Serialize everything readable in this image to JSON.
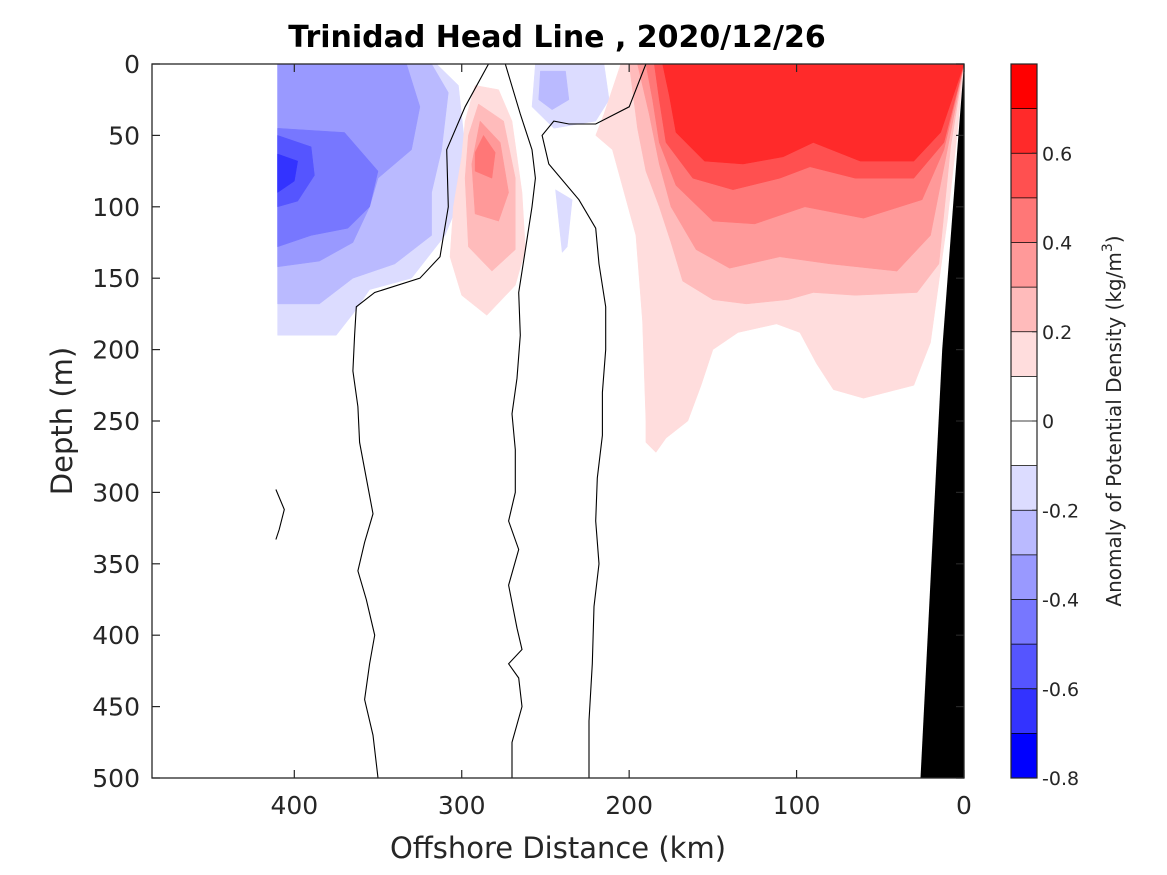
{
  "chart_data": {
    "type": "heatmap",
    "title": "Trinidad Head Line , 2020/12/26",
    "xlabel": "Offshore Distance (km)",
    "ylabel": "Depth (m)",
    "xlim": [
      485,
      0
    ],
    "ylim": [
      0,
      500
    ],
    "x_reversed": true,
    "y_reversed": true,
    "x_ticks": [
      400,
      300,
      200,
      100,
      0
    ],
    "x_tick_labels": [
      "400",
      "300",
      "200",
      "100",
      "0"
    ],
    "y_ticks": [
      0,
      50,
      100,
      150,
      200,
      250,
      300,
      350,
      400,
      450,
      500
    ],
    "y_tick_labels": [
      "0",
      "50",
      "100",
      "150",
      "200",
      "250",
      "300",
      "350",
      "400",
      "450",
      "500"
    ],
    "colorbar": {
      "label": "Anomaly of Potential Density (kg/m³)",
      "label_text": "Anomaly of Potential Density (kg/m",
      "label_sup": "3",
      "label_close": ")",
      "range": [
        -0.8,
        0.8
      ],
      "ticks": [
        0.6,
        0.4,
        0.2,
        0,
        -0.2,
        -0.4,
        -0.6,
        -0.8
      ],
      "tick_labels": [
        "0.6",
        "0.4",
        "0.2",
        "0",
        "-0.2",
        "-0.4",
        "-0.6",
        "-0.8"
      ],
      "levels": [
        {
          "lo": 0.7,
          "hi": 0.8,
          "color": "#ff0000"
        },
        {
          "lo": 0.6,
          "hi": 0.7,
          "color": "#ff2a2a"
        },
        {
          "lo": 0.5,
          "hi": 0.6,
          "color": "#ff5050"
        },
        {
          "lo": 0.4,
          "hi": 0.5,
          "color": "#ff7777"
        },
        {
          "lo": 0.3,
          "hi": 0.4,
          "color": "#ff9999"
        },
        {
          "lo": 0.2,
          "hi": 0.3,
          "color": "#ffbbbb"
        },
        {
          "lo": 0.1,
          "hi": 0.2,
          "color": "#ffdddd"
        },
        {
          "lo": 0.0,
          "hi": 0.1,
          "color": "#ffffff"
        },
        {
          "lo": -0.1,
          "hi": 0.0,
          "color": "#ffffff"
        },
        {
          "lo": -0.2,
          "hi": -0.1,
          "color": "#dcdcff"
        },
        {
          "lo": -0.3,
          "hi": -0.2,
          "color": "#babaff"
        },
        {
          "lo": -0.4,
          "hi": -0.3,
          "color": "#9999ff"
        },
        {
          "lo": -0.5,
          "hi": -0.4,
          "color": "#7777ff"
        },
        {
          "lo": -0.6,
          "hi": -0.5,
          "color": "#5555ff"
        },
        {
          "lo": -0.7,
          "hi": -0.6,
          "color": "#3333ff"
        },
        {
          "lo": -0.8,
          "hi": -0.7,
          "color": "#0000ff"
        }
      ]
    },
    "regions": [
      {
        "name": "neg-0.1",
        "color": "#dcdcff",
        "points": [
          [
            410,
            0
          ],
          [
            315,
            0
          ],
          [
            302,
            15
          ],
          [
            296,
            80
          ],
          [
            310,
            120
          ],
          [
            330,
            150
          ],
          [
            355,
            158
          ],
          [
            365,
            175
          ],
          [
            375,
            190
          ],
          [
            410,
            190
          ]
        ]
      },
      {
        "name": "neg-0.2",
        "color": "#babaff",
        "points": [
          [
            410,
            0
          ],
          [
            318,
            0
          ],
          [
            308,
            20
          ],
          [
            312,
            60
          ],
          [
            318,
            90
          ],
          [
            318,
            120
          ],
          [
            340,
            140
          ],
          [
            365,
            150
          ],
          [
            385,
            168
          ],
          [
            410,
            168
          ]
        ]
      },
      {
        "name": "neg-0.3",
        "color": "#9999ff",
        "points": [
          [
            410,
            0
          ],
          [
            333,
            0
          ],
          [
            325,
            30
          ],
          [
            330,
            60
          ],
          [
            350,
            80
          ],
          [
            355,
            100
          ],
          [
            365,
            125
          ],
          [
            385,
            138
          ],
          [
            410,
            142
          ]
        ]
      },
      {
        "name": "neg-0.4",
        "color": "#7777ff",
        "points": [
          [
            410,
            45
          ],
          [
            370,
            48
          ],
          [
            350,
            75
          ],
          [
            355,
            100
          ],
          [
            368,
            115
          ],
          [
            390,
            120
          ],
          [
            410,
            128
          ]
        ]
      },
      {
        "name": "neg-0.5",
        "color": "#5555ff",
        "points": [
          [
            410,
            50
          ],
          [
            390,
            58
          ],
          [
            388,
            78
          ],
          [
            398,
            96
          ],
          [
            410,
            100
          ]
        ]
      },
      {
        "name": "neg-0.6",
        "color": "#3333ff",
        "points": [
          [
            410,
            63
          ],
          [
            398,
            68
          ],
          [
            400,
            82
          ],
          [
            410,
            90
          ]
        ]
      },
      {
        "name": "neg-0.1-b",
        "color": "#dcdcff",
        "points": [
          [
            256,
            0
          ],
          [
            215,
            0
          ],
          [
            212,
            25
          ],
          [
            220,
            40
          ],
          [
            245,
            45
          ],
          [
            258,
            30
          ]
        ]
      },
      {
        "name": "neg-0.2-b",
        "color": "#babaff",
        "points": [
          [
            253,
            5
          ],
          [
            238,
            5
          ],
          [
            236,
            25
          ],
          [
            246,
            32
          ],
          [
            254,
            25
          ]
        ]
      },
      {
        "name": "neg-0.1-c",
        "color": "#dcdcff",
        "points": [
          [
            244,
            88
          ],
          [
            234,
            95
          ],
          [
            237,
            128
          ],
          [
            240,
            132
          ],
          [
            242,
            110
          ]
        ]
      },
      {
        "name": "pos-0.1-a",
        "color": "#ffdddd",
        "points": [
          [
            292,
            15
          ],
          [
            278,
            18
          ],
          [
            270,
            40
          ],
          [
            264,
            90
          ],
          [
            262,
            130
          ],
          [
            268,
            155
          ],
          [
            285,
            176
          ],
          [
            300,
            162
          ],
          [
            307,
            135
          ],
          [
            305,
            100
          ],
          [
            300,
            65
          ],
          [
            298,
            40
          ]
        ]
      },
      {
        "name": "pos-0.2-a",
        "color": "#ffbbbb",
        "points": [
          [
            290,
            28
          ],
          [
            275,
            40
          ],
          [
            268,
            80
          ],
          [
            268,
            130
          ],
          [
            282,
            145
          ],
          [
            296,
            128
          ],
          [
            298,
            80
          ],
          [
            296,
            50
          ]
        ]
      },
      {
        "name": "pos-0.3-a",
        "color": "#ff9999",
        "points": [
          [
            289,
            40
          ],
          [
            277,
            55
          ],
          [
            272,
            90
          ],
          [
            278,
            110
          ],
          [
            292,
            105
          ],
          [
            294,
            70
          ]
        ]
      },
      {
        "name": "pos-0.4-a",
        "color": "#ff7777",
        "points": [
          [
            287,
            50
          ],
          [
            280,
            62
          ],
          [
            282,
            80
          ],
          [
            292,
            75
          ],
          [
            292,
            62
          ]
        ]
      },
      {
        "name": "pos-0.1-b",
        "color": "#ffdddd",
        "points": [
          [
            205,
            0
          ],
          [
            0,
            0
          ],
          [
            4,
            48
          ],
          [
            10,
            110
          ],
          [
            20,
            195
          ],
          [
            30,
            225
          ],
          [
            60,
            234
          ],
          [
            78,
            228
          ],
          [
            88,
            210
          ],
          [
            98,
            188
          ],
          [
            112,
            182
          ],
          [
            135,
            188
          ],
          [
            150,
            200
          ],
          [
            157,
            225
          ],
          [
            165,
            250
          ],
          [
            178,
            262
          ],
          [
            184,
            272
          ],
          [
            190,
            265
          ],
          [
            190,
            250
          ],
          [
            192,
            180
          ],
          [
            196,
            120
          ],
          [
            210,
            60
          ],
          [
            220,
            50
          ],
          [
            215,
            35
          ]
        ]
      },
      {
        "name": "pos-0.2-b",
        "color": "#ffbbbb",
        "points": [
          [
            200,
            0
          ],
          [
            0,
            0
          ],
          [
            8,
            58
          ],
          [
            15,
            140
          ],
          [
            28,
            160
          ],
          [
            65,
            162
          ],
          [
            90,
            160
          ],
          [
            105,
            165
          ],
          [
            130,
            168
          ],
          [
            150,
            165
          ],
          [
            168,
            152
          ],
          [
            175,
            125
          ],
          [
            182,
            100
          ],
          [
            190,
            75
          ],
          [
            195,
            45
          ]
        ]
      },
      {
        "name": "pos-0.3-b",
        "color": "#ff9999",
        "points": [
          [
            195,
            0
          ],
          [
            0,
            0
          ],
          [
            10,
            60
          ],
          [
            20,
            120
          ],
          [
            40,
            145
          ],
          [
            80,
            140
          ],
          [
            110,
            135
          ],
          [
            140,
            143
          ],
          [
            160,
            130
          ],
          [
            175,
            100
          ],
          [
            182,
            70
          ],
          [
            188,
            35
          ]
        ]
      },
      {
        "name": "pos-0.4-b",
        "color": "#ff7777",
        "points": [
          [
            190,
            0
          ],
          [
            0,
            0
          ],
          [
            12,
            60
          ],
          [
            25,
            95
          ],
          [
            60,
            108
          ],
          [
            95,
            100
          ],
          [
            125,
            112
          ],
          [
            150,
            110
          ],
          [
            172,
            85
          ],
          [
            182,
            55
          ],
          [
            186,
            25
          ]
        ]
      },
      {
        "name": "pos-0.5-b",
        "color": "#ff5050",
        "points": [
          [
            185,
            0
          ],
          [
            0,
            0
          ],
          [
            12,
            55
          ],
          [
            30,
            80
          ],
          [
            65,
            80
          ],
          [
            92,
            72
          ],
          [
            110,
            80
          ],
          [
            138,
            88
          ],
          [
            162,
            80
          ],
          [
            178,
            55
          ],
          [
            182,
            25
          ]
        ]
      },
      {
        "name": "pos-0.6-b",
        "color": "#ff2a2a",
        "points": [
          [
            180,
            0
          ],
          [
            0,
            0
          ],
          [
            14,
            48
          ],
          [
            30,
            68
          ],
          [
            62,
            68
          ],
          [
            90,
            55
          ],
          [
            108,
            65
          ],
          [
            132,
            70
          ],
          [
            155,
            68
          ],
          [
            172,
            48
          ],
          [
            176,
            22
          ]
        ]
      }
    ],
    "contours": [
      {
        "name": "zero-contour-1",
        "points": [
          [
            350,
            500
          ],
          [
            353,
            470
          ],
          [
            358,
            445
          ],
          [
            355,
            420
          ],
          [
            352,
            400
          ],
          [
            357,
            375
          ],
          [
            362,
            355
          ],
          [
            358,
            335
          ],
          [
            353,
            315
          ],
          [
            357,
            290
          ],
          [
            361,
            265
          ],
          [
            362,
            240
          ],
          [
            365,
            215
          ],
          [
            364,
            190
          ],
          [
            363,
            170
          ],
          [
            352,
            160
          ],
          [
            325,
            150
          ],
          [
            313,
            135
          ],
          [
            308,
            100
          ],
          [
            309,
            60
          ],
          [
            298,
            30
          ],
          [
            284,
            0
          ]
        ]
      },
      {
        "name": "zero-contour-2",
        "points": [
          [
            270,
            500
          ],
          [
            270,
            475
          ],
          [
            264,
            450
          ],
          [
            266,
            430
          ],
          [
            272,
            420
          ],
          [
            264,
            410
          ],
          [
            267,
            395
          ],
          [
            272,
            365
          ],
          [
            266,
            340
          ],
          [
            272,
            320
          ],
          [
            268,
            300
          ],
          [
            268,
            270
          ],
          [
            270,
            245
          ],
          [
            267,
            220
          ],
          [
            265,
            190
          ],
          [
            266,
            160
          ],
          [
            262,
            130
          ],
          [
            258,
            100
          ],
          [
            256,
            80
          ],
          [
            258,
            60
          ],
          [
            265,
            35
          ],
          [
            274,
            0
          ]
        ]
      },
      {
        "name": "zero-contour-3",
        "points": [
          [
            224,
            500
          ],
          [
            224,
            460
          ],
          [
            222,
            420
          ],
          [
            221,
            380
          ],
          [
            218,
            350
          ],
          [
            220,
            320
          ],
          [
            219,
            290
          ],
          [
            216,
            260
          ],
          [
            216,
            230
          ],
          [
            214,
            200
          ],
          [
            214,
            170
          ],
          [
            218,
            140
          ],
          [
            220,
            115
          ],
          [
            230,
            95
          ],
          [
            248,
            70
          ],
          [
            252,
            50
          ],
          [
            245,
            40
          ],
          [
            236,
            42
          ],
          [
            220,
            42
          ],
          [
            200,
            30
          ],
          [
            190,
            0
          ]
        ]
      },
      {
        "name": "zero-contour-4",
        "points": [
          [
            411,
            298
          ],
          [
            406,
            312
          ],
          [
            409,
            326
          ],
          [
            411,
            333
          ]
        ]
      }
    ],
    "seafloor": {
      "color": "#000000",
      "points": [
        [
          0,
          0
        ],
        [
          0,
          500
        ],
        [
          26,
          500
        ],
        [
          13,
          200
        ],
        [
          4,
          60
        ],
        [
          0,
          0
        ]
      ]
    }
  }
}
